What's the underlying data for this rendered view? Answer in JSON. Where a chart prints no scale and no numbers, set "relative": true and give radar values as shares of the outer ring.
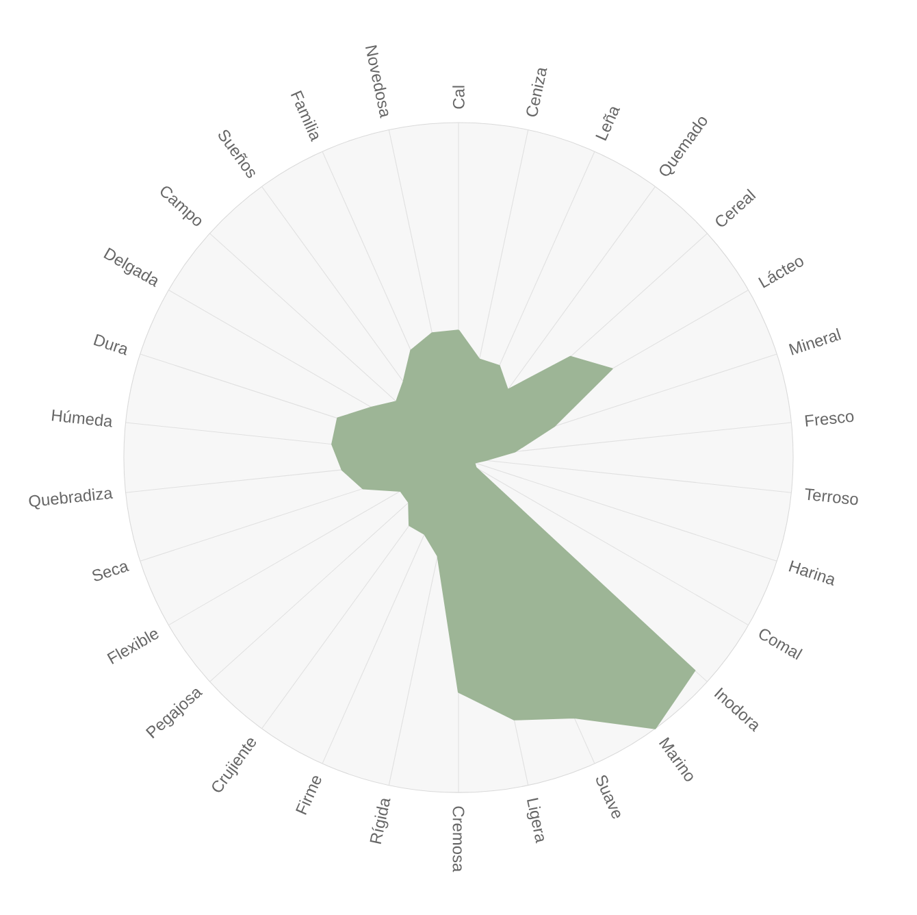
{
  "chart_data": {
    "type": "radar",
    "relative": true,
    "categories": [
      "Cal",
      "Ceniza",
      "Leña",
      "Quemado",
      "Cereal",
      "Lácteo",
      "Mineral",
      "Fresco",
      "Terroso",
      "Harina",
      "Comal",
      "Inodora",
      "Marino",
      "Suave",
      "Ligera",
      "Cremosa",
      "Rígida",
      "Firme",
      "Crujiente",
      "Pegajosa",
      "Flexible",
      "Seca",
      "Quebradiza",
      "Húmeda",
      "Dura",
      "Delgada",
      "Campo",
      "Sueños",
      "Familia",
      "Novedosa"
    ],
    "series": [
      {
        "color": "#9db596",
        "values": [
          0.38,
          0.3,
          0.3,
          0.25,
          0.45,
          0.53,
          0.3,
          0.17,
          0.08,
          0.05,
          0.06,
          0.95,
          1.0,
          0.85,
          0.8,
          0.7,
          0.3,
          0.25,
          0.25,
          0.2,
          0.2,
          0.3,
          0.35,
          0.38,
          0.38,
          0.3,
          0.25,
          0.28,
          0.35,
          0.38
        ]
      }
    ]
  }
}
